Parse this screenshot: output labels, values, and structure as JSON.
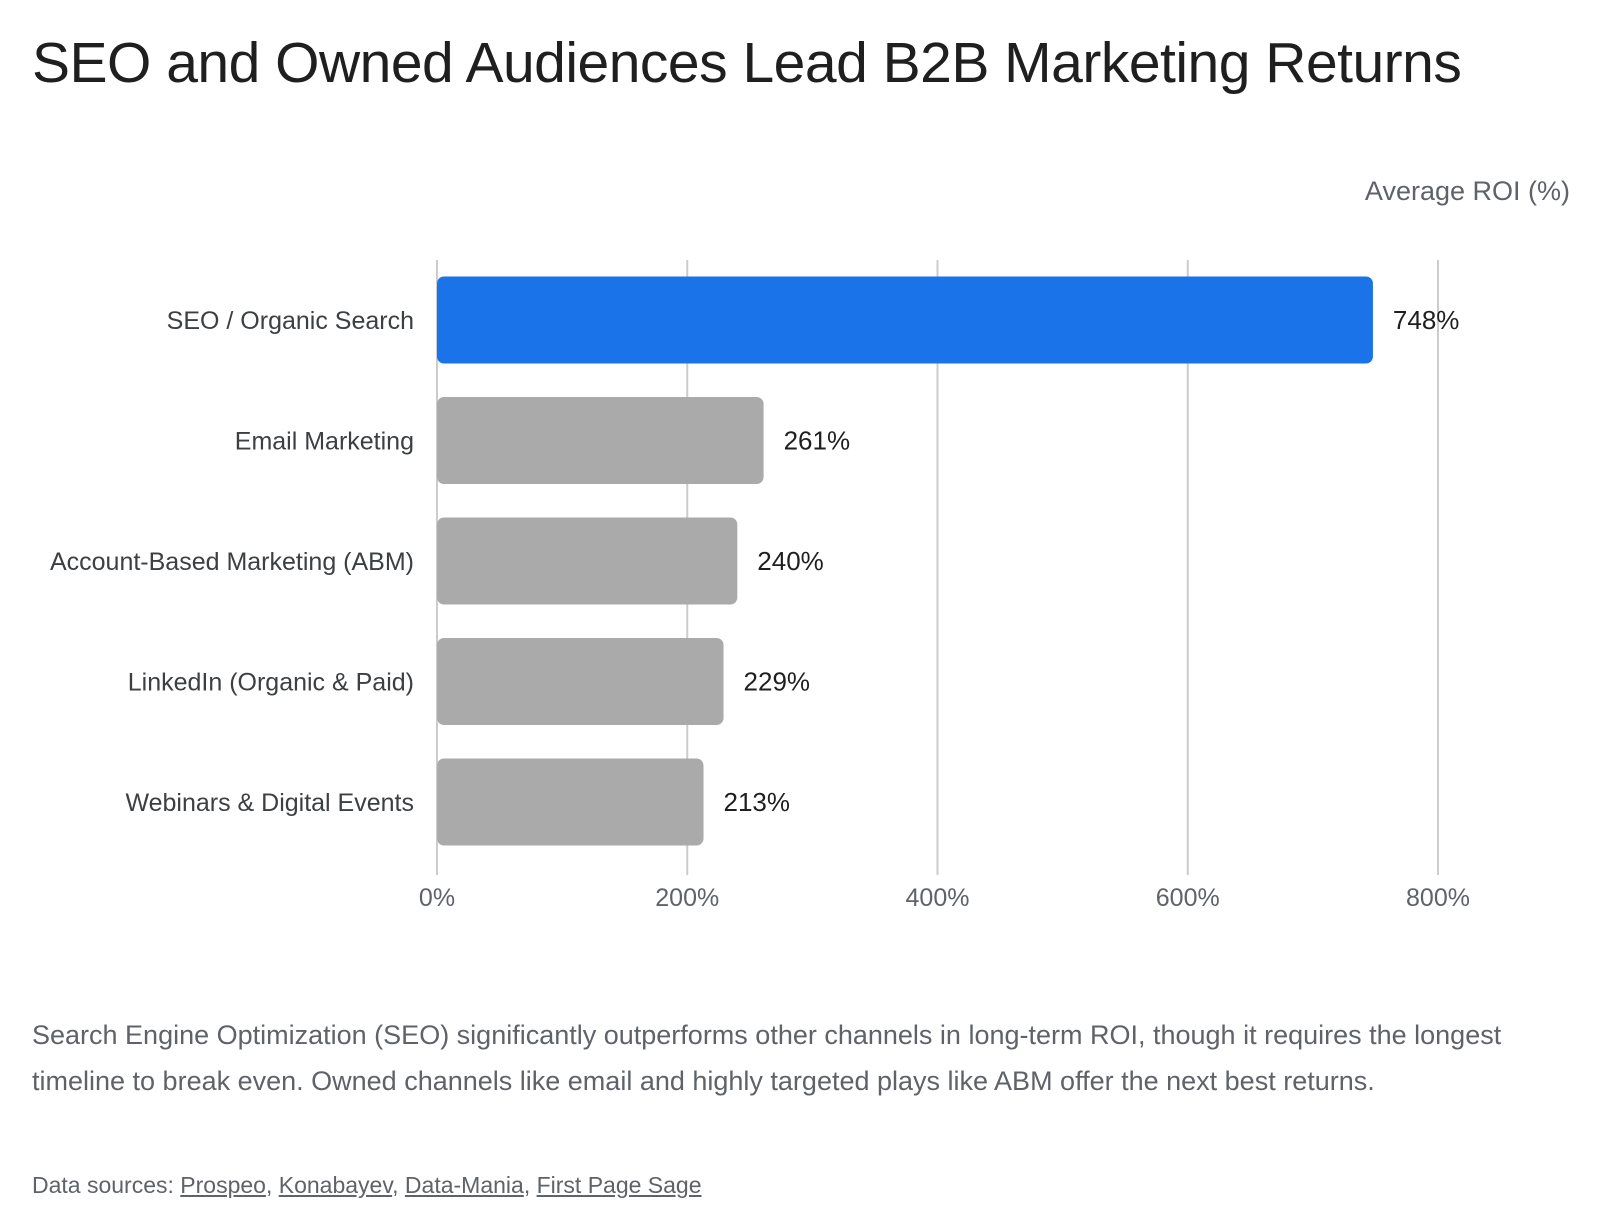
{
  "chart_data": {
    "type": "bar",
    "orientation": "horizontal",
    "title": "SEO and Owned Audiences Lead B2B Marketing Returns",
    "xlabel": "Average ROI (%)",
    "ylabel": "",
    "categories": [
      "SEO / Organic Search",
      "Email Marketing",
      "Account-Based Marketing (ABM)",
      "LinkedIn (Organic & Paid)",
      "Webinars & Digital Events"
    ],
    "values": [
      748,
      261,
      240,
      229,
      213
    ],
    "value_labels": [
      "748%",
      "261%",
      "240%",
      "229%",
      "213%"
    ],
    "xlim": [
      0,
      800
    ],
    "ticks": [
      0,
      200,
      400,
      600,
      800
    ],
    "tick_labels": [
      "0%",
      "200%",
      "400%",
      "600%",
      "800%"
    ],
    "grid": true,
    "legend": "none",
    "colors": {
      "highlight": "#1a73e8",
      "default": "#aaaaaa",
      "grid": "#cccccc"
    }
  },
  "caption": "Search Engine Optimization (SEO) significantly outperforms other channels in long-term ROI, though it requires the longest timeline to break even. Owned channels like email and highly targeted plays like ABM offer the next best returns.",
  "sources": {
    "prefix": "Data sources: ",
    "separator": ", ",
    "links": [
      "Prospeo",
      "Konabayev",
      "Data-Mania",
      "First Page Sage"
    ]
  }
}
